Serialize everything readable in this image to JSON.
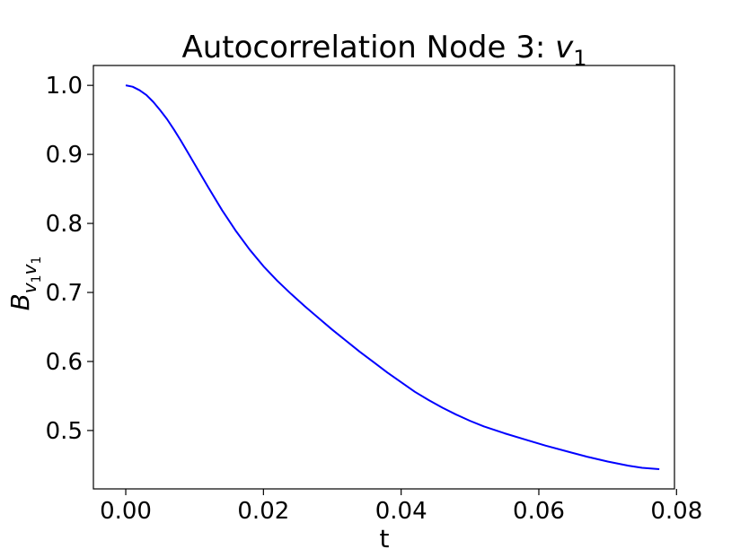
{
  "chart_data": {
    "type": "line",
    "title": {
      "text": "Autocorrelation Node 3: ",
      "math_var": "v",
      "math_sub": "1"
    },
    "xlabel": "t",
    "ylabel": {
      "base": "B",
      "sub_var1": "v",
      "sub_idx1": "1",
      "sub_var2": "v",
      "sub_idx2": "1"
    },
    "xlim": [
      -0.0047,
      0.0797
    ],
    "ylim": [
      0.4154,
      1.0288
    ],
    "x_ticks": [
      0.0,
      0.02,
      0.04,
      0.06,
      0.08
    ],
    "x_tick_labels": [
      "0.00",
      "0.02",
      "0.04",
      "0.06",
      "0.08"
    ],
    "y_ticks": [
      0.5,
      0.6,
      0.7,
      0.8,
      0.9,
      1.0
    ],
    "y_tick_labels": [
      "0.5",
      "0.6",
      "0.7",
      "0.8",
      "0.9",
      "1.0"
    ],
    "grid": false,
    "series": [
      {
        "color": "#0000ff",
        "x": [
          0.0,
          0.001,
          0.002,
          0.003,
          0.004,
          0.005,
          0.006,
          0.007,
          0.008,
          0.009,
          0.01,
          0.012,
          0.014,
          0.016,
          0.018,
          0.02,
          0.022,
          0.024,
          0.026,
          0.028,
          0.03,
          0.032,
          0.034,
          0.036,
          0.038,
          0.04,
          0.042,
          0.044,
          0.046,
          0.048,
          0.05,
          0.052,
          0.055,
          0.058,
          0.061,
          0.064,
          0.067,
          0.07,
          0.073,
          0.075,
          0.0775
        ],
        "y": [
          1.0,
          0.998,
          0.993,
          0.986,
          0.976,
          0.964,
          0.951,
          0.936,
          0.92,
          0.903,
          0.886,
          0.852,
          0.819,
          0.789,
          0.762,
          0.738,
          0.717,
          0.698,
          0.68,
          0.663,
          0.646,
          0.63,
          0.614,
          0.599,
          0.584,
          0.57,
          0.556,
          0.544,
          0.533,
          0.523,
          0.514,
          0.506,
          0.496,
          0.487,
          0.478,
          0.47,
          0.462,
          0.455,
          0.449,
          0.446,
          0.444
        ]
      }
    ]
  }
}
